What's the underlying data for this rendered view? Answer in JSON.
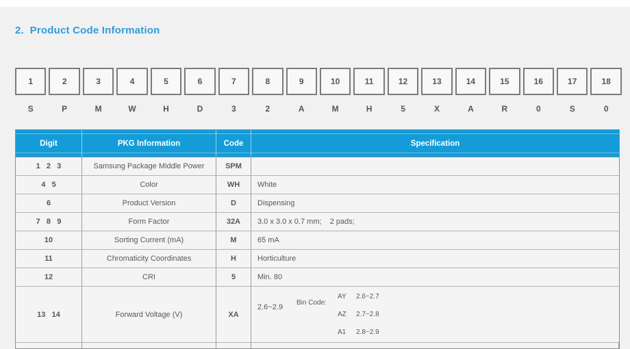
{
  "page": {
    "title": "2.  Product Code Information"
  },
  "colors": {
    "accent_blue": "#149cd8",
    "title_blue": "#2f9dd8",
    "page_background": "#f1f1f2",
    "box_border_gray": "#7b7b7b",
    "text_gray": "#575757"
  },
  "code_strip": {
    "digits": [
      "1",
      "2",
      "3",
      "4",
      "5",
      "6",
      "7",
      "8",
      "9",
      "10",
      "11",
      "12",
      "13",
      "14",
      "15",
      "16",
      "17",
      "18"
    ],
    "letters": [
      "S",
      "P",
      "M",
      "W",
      "H",
      "D",
      "3",
      "2",
      "A",
      "M",
      "H",
      "5",
      "X",
      "A",
      "R",
      "0",
      "S",
      "0"
    ]
  },
  "table": {
    "headers": {
      "digit": "Digit",
      "pkg": "PKG Information",
      "code": "Code",
      "spec": "Specification"
    },
    "rows": [
      {
        "digit": "1   2   3",
        "pkg": "Samsung Package Middle Power",
        "code": "SPM",
        "spec": ""
      },
      {
        "digit": "4   5",
        "pkg": "Color",
        "code": "WH",
        "spec": "White"
      },
      {
        "digit": "6",
        "pkg": "Product Version",
        "code": "D",
        "spec": "Dispensing"
      },
      {
        "digit": "7   8   9",
        "pkg": "Form Factor",
        "code": "32A",
        "spec": "3.0 x 3.0 x 0.7 mm;    2 pads;"
      },
      {
        "digit": "10",
        "pkg": "Sorting Current (mA)",
        "code": "M",
        "spec": "65 mA"
      },
      {
        "digit": "11",
        "pkg": "Chromaticity Coordinates",
        "code": "H",
        "spec": "Horticulture"
      },
      {
        "digit": "12",
        "pkg": "CRI",
        "code": "5",
        "spec": "Min. 80"
      }
    ],
    "forward_voltage_row": {
      "digit": "13   14",
      "pkg": "Forward Voltage (V)",
      "code": "XA",
      "range": "2.6~2.9",
      "bin_label": "Bin Code:",
      "bins": [
        {
          "code": "AY",
          "range": "2.6~2.7"
        },
        {
          "code": "AZ",
          "range": "2.7~2.8"
        },
        {
          "code": "A1",
          "range": "2.8~2.9"
        }
      ]
    }
  }
}
